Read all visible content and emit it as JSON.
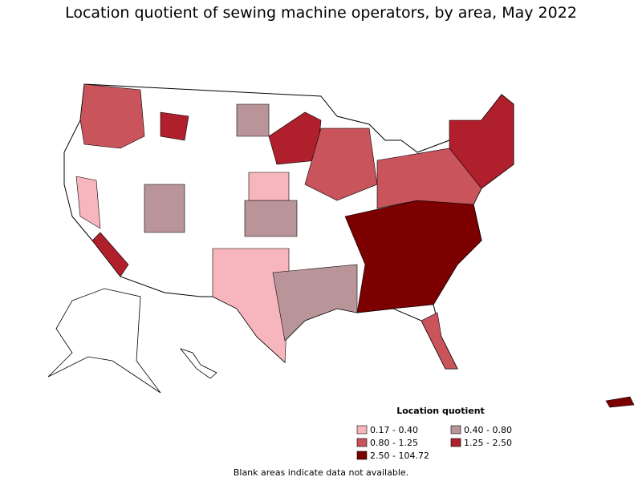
{
  "title": "Location quotient of sewing machine operators, by area, May 2022",
  "legend": {
    "title": "Location quotient",
    "items": [
      {
        "label": "0.17 - 0.40",
        "color": "#f7b6bd"
      },
      {
        "label": "0.40 - 0.80",
        "color": "#b9959a"
      },
      {
        "label": "0.80 - 1.25",
        "color": "#c9545c"
      },
      {
        "label": "1.25 - 2.50",
        "color": "#b01f2c"
      },
      {
        "label": "2.50 - 104.72",
        "color": "#7c0000"
      }
    ]
  },
  "note": "Blank areas indicate data not available."
}
